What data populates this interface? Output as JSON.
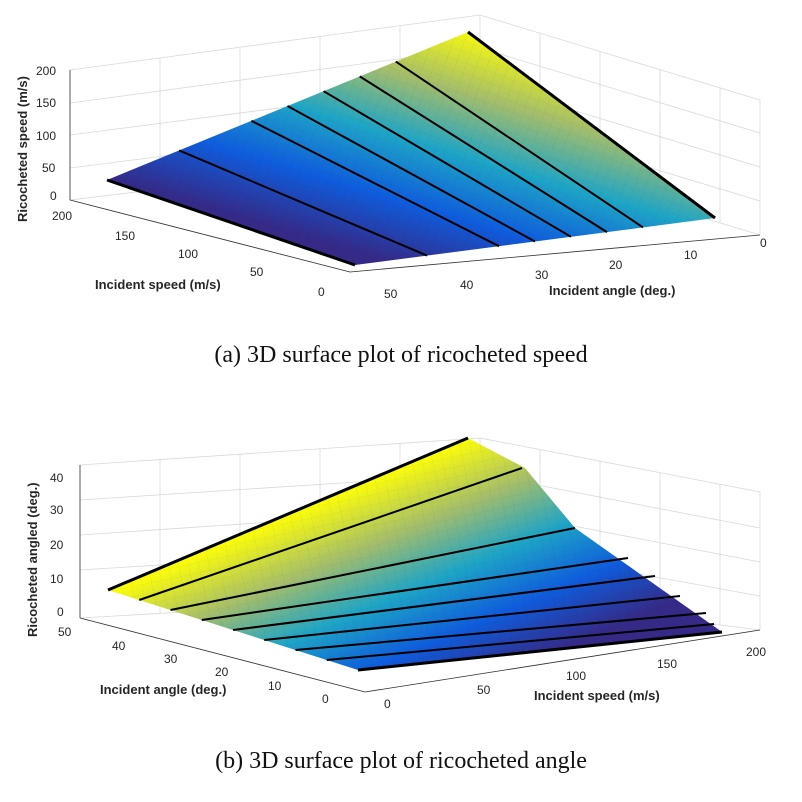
{
  "chart_data": [
    {
      "type": "surface",
      "panel": "a",
      "caption": "(a) 3D surface plot of ricocheted speed",
      "xlabel": "Incident angle (deg.)",
      "ylabel": "Incident speed (m/s)",
      "zlabel": "Ricocheted speed (m/s)",
      "x_ticks": [
        "0",
        "10",
        "20",
        "30",
        "40",
        "50"
      ],
      "y_ticks": [
        "0",
        "50",
        "100",
        "150",
        "200"
      ],
      "z_ticks": [
        "0",
        "50",
        "100",
        "150",
        "200"
      ],
      "xlim": [
        0,
        50
      ],
      "ylim": [
        0,
        200
      ],
      "zlim": [
        0,
        200
      ],
      "colormap": "parula",
      "grid": true,
      "contour_lines_incident_angle": [
        0,
        10,
        15,
        20,
        25,
        30,
        40,
        50
      ],
      "samples": [
        {
          "incident_angle": 0,
          "incident_speed": 200,
          "value": 200
        },
        {
          "incident_angle": 50,
          "incident_speed": 200,
          "value": 30
        },
        {
          "incident_angle": 0,
          "incident_speed": 0,
          "value": 0
        },
        {
          "incident_angle": 50,
          "incident_speed": 0,
          "value": 0
        }
      ]
    },
    {
      "type": "surface",
      "panel": "b",
      "caption": "(b) 3D surface plot of ricocheted angle",
      "xlabel": "Incident speed (m/s)",
      "ylabel": "Incident angle (deg.)",
      "zlabel": "Ricocheted angled (deg.)",
      "x_ticks": [
        "0",
        "50",
        "100",
        "150",
        "200"
      ],
      "y_ticks": [
        "0",
        "10",
        "20",
        "30",
        "40",
        "50"
      ],
      "z_ticks": [
        "0",
        "10",
        "20",
        "30",
        "40"
      ],
      "xlim": [
        0,
        200
      ],
      "ylim": [
        0,
        50
      ],
      "zlim": [
        0,
        45
      ],
      "colormap": "parula",
      "grid": true,
      "contour_lines_incident_speed": [
        0,
        25,
        50,
        75,
        100,
        125,
        150,
        175,
        200
      ],
      "samples": [
        {
          "incident_speed": 0,
          "incident_angle": 50,
          "value": 43
        },
        {
          "incident_speed": 200,
          "incident_angle": 50,
          "value": 8
        },
        {
          "incident_speed": 0,
          "incident_angle": 0,
          "value": 0
        },
        {
          "incident_speed": 200,
          "incident_angle": 0,
          "value": 0
        }
      ]
    }
  ]
}
